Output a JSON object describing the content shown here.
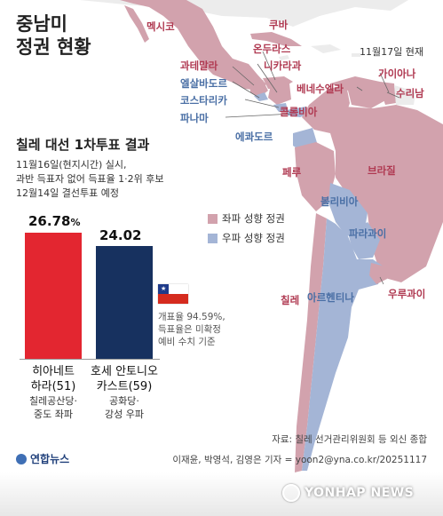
{
  "header": {
    "title_line1": "중남미",
    "title_line2": "정권 현황",
    "date": "11월17일 현재"
  },
  "map_labels": {
    "mexico": "멕시코",
    "cuba": "쿠바",
    "honduras": "온두라스",
    "guatemala": "과테말라",
    "nicaragua": "니카라과",
    "el_salvador": "엘살바도르",
    "costa_rica": "코스타리카",
    "panama": "파나마",
    "guyana": "가이아나",
    "suriname": "수리남",
    "venezuela": "베네수엘라",
    "colombia": "콜롬비아",
    "ecuador": "에콰도르",
    "peru": "페루",
    "brazil": "브라질",
    "bolivia": "볼리비아",
    "paraguay": "파라과이",
    "chile": "칠레",
    "argentina": "아르헨티나",
    "uruguay": "우루과이"
  },
  "legend": {
    "left_label": "좌파 성향 정권",
    "right_label": "우파 성향 정권"
  },
  "colors": {
    "left": "#d2a2ad",
    "right": "#a4b5d6",
    "bar_left": "#e32630",
    "bar_right": "#17315f",
    "neutral": "#ececec"
  },
  "chart": {
    "title": "칠레 대선 1차투표 결과",
    "desc1": "11월16일(현지시간) 실시,",
    "desc2": "과반 득표자 없어 득표율 1·2위 후보",
    "desc3": "12월14일 결선투표 예정",
    "note1": "개표율 94.59%,",
    "note2": "득표율은 미확정",
    "note3": "예비 수치 기준"
  },
  "chart_data": {
    "type": "bar",
    "categories": [
      "히아네트 하라(51)",
      "호세 안토니오 카스트(59)"
    ],
    "values": [
      26.78,
      24.02
    ],
    "value_labels": [
      "26.78",
      "24.02"
    ],
    "unit": "%",
    "candidates": [
      {
        "name1": "히아네트",
        "name2": "하라(51)",
        "party1": "칠레공산당·",
        "party2": "중도 좌파"
      },
      {
        "name1": "호세 안토니오",
        "name2": "카스트(59)",
        "party1": "공화당·",
        "party2": "강성 우파"
      }
    ],
    "title": "칠레 대선 1차투표 결과"
  },
  "footer": {
    "source": "자료: 칠레 선거관리위원회 등 외신 종합",
    "credit": "이재윤, 박영석, 김영은 기자 = yoon2@yna.co.kr/20251117",
    "logo": "연합뉴스",
    "watermark": "YONHAP NEWS"
  }
}
